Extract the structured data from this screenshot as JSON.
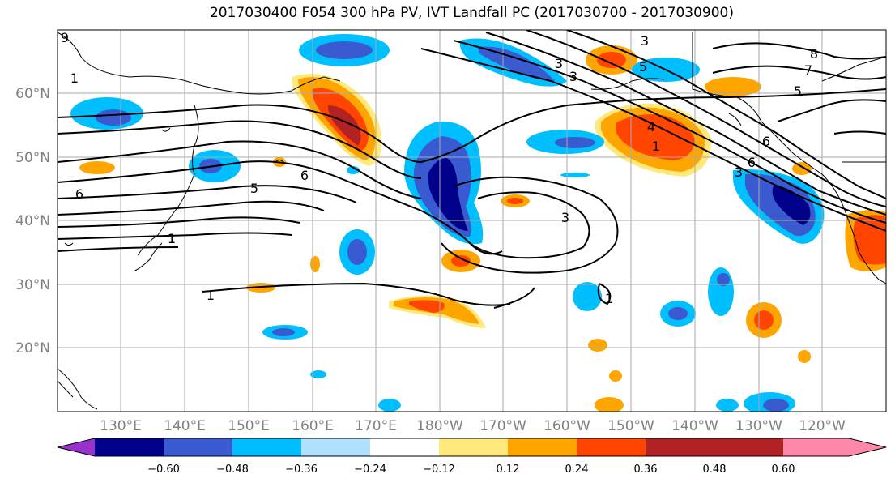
{
  "title": "2017030400 F054 300 hPa PV, IVT Landfall PC (2017030700 - 2017030900)",
  "lat_labels": [
    "60°N",
    "50°N",
    "40°N",
    "30°N",
    "20°N"
  ],
  "lon_labels": [
    "130°E",
    "140°E",
    "150°E",
    "160°E",
    "170°E",
    "180°W",
    "170°W",
    "160°W",
    "150°W",
    "140°W",
    "130°W",
    "120°W"
  ],
  "colorbar": {
    "tick_labels": [
      "−0.60",
      "−0.48",
      "−0.36",
      "−0.24",
      "−0.12",
      "0.12",
      "0.24",
      "0.36",
      "0.48",
      "0.60"
    ],
    "colors": [
      "#9932cc",
      "#00008b",
      "#3a5bd0",
      "#00bfff",
      "#b0e2ff",
      "#ffffff",
      "#ffe87c",
      "#ffa500",
      "#ff4500",
      "#b22222",
      "#ff88aa"
    ]
  },
  "contour_labels": [
    "6",
    "5",
    "6",
    "1",
    "1",
    "3",
    "5",
    "3",
    "4",
    "1",
    "3",
    "6",
    "7",
    "5",
    "8",
    "1",
    "3",
    "1",
    "9",
    "3",
    "6"
  ]
}
